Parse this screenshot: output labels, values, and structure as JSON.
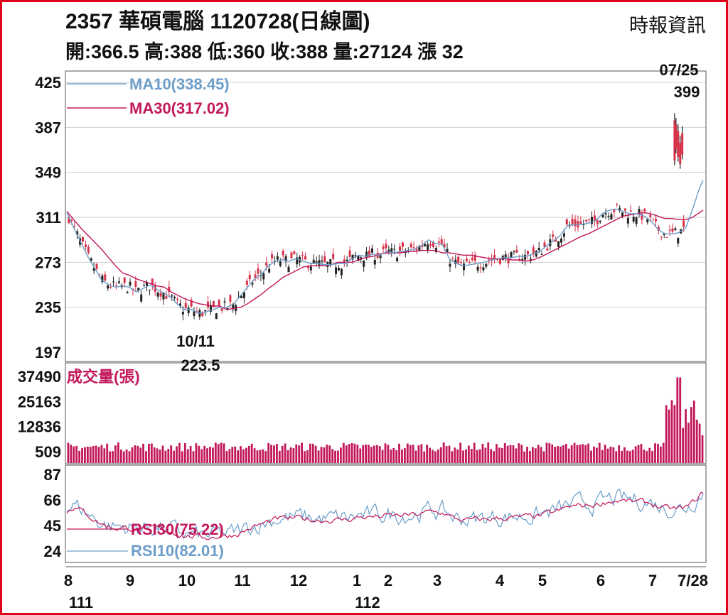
{
  "header": {
    "title": "2357 華碩電腦 1120728(日線圖)",
    "source": "時報資訊",
    "quote": "開:366.5 高:388 低:360 收:388 量:27124 漲 32"
  },
  "colors": {
    "frame": "#e0001b",
    "ma10": "#6c9ec9",
    "ma30": "#c2185b",
    "candle_up": "#d6324a",
    "candle_down": "#222222",
    "volume": "#c2185b",
    "rsi10": "#6c9ec9",
    "rsi30": "#c2185b",
    "grid": "#cfcfcf"
  },
  "chart_data": {
    "type": "line",
    "price_panel": {
      "yticks": [
        "425",
        "387",
        "349",
        "311",
        "273",
        "235",
        "197"
      ],
      "ylim": [
        197,
        425
      ],
      "legend": [
        "MA10(338.45)",
        "MA30(317.02)"
      ],
      "annotations": [
        {
          "label_date": "10/11",
          "label_value": "223.5"
        },
        {
          "label_date": "07/25",
          "label_value": "399"
        }
      ],
      "ma10": [
        [
          0,
          315
        ],
        [
          10,
          302
        ],
        [
          20,
          290
        ],
        [
          30,
          278
        ],
        [
          40,
          268
        ],
        [
          50,
          258
        ],
        [
          60,
          254
        ],
        [
          70,
          252
        ],
        [
          80,
          253
        ],
        [
          90,
          252
        ],
        [
          100,
          248
        ],
        [
          110,
          251
        ],
        [
          120,
          254
        ],
        [
          130,
          250
        ],
        [
          140,
          247
        ],
        [
          150,
          243
        ],
        [
          160,
          237
        ],
        [
          170,
          233
        ],
        [
          180,
          233
        ],
        [
          190,
          230
        ],
        [
          200,
          231
        ],
        [
          210,
          233
        ],
        [
          220,
          235
        ],
        [
          230,
          235
        ],
        [
          240,
          238
        ],
        [
          250,
          245
        ],
        [
          260,
          252
        ],
        [
          270,
          259
        ],
        [
          280,
          263
        ],
        [
          290,
          270
        ],
        [
          300,
          274
        ],
        [
          310,
          275
        ],
        [
          320,
          274
        ],
        [
          330,
          276
        ],
        [
          340,
          274
        ],
        [
          350,
          272
        ],
        [
          360,
          272
        ],
        [
          370,
          271
        ],
        [
          380,
          271
        ],
        [
          390,
          272
        ],
        [
          400,
          272
        ],
        [
          410,
          276
        ],
        [
          420,
          279
        ],
        [
          430,
          278
        ],
        [
          440,
          280
        ],
        [
          450,
          279
        ],
        [
          460,
          282
        ],
        [
          470,
          281
        ],
        [
          480,
          282
        ],
        [
          490,
          283
        ],
        [
          500,
          284
        ],
        [
          510,
          287
        ],
        [
          520,
          292
        ],
        [
          530,
          289
        ],
        [
          540,
          288
        ],
        [
          550,
          276
        ],
        [
          560,
          272
        ],
        [
          570,
          270
        ],
        [
          580,
          271
        ],
        [
          590,
          272
        ],
        [
          600,
          273
        ],
        [
          610,
          275
        ],
        [
          620,
          276
        ],
        [
          630,
          277
        ],
        [
          640,
          277
        ],
        [
          650,
          278
        ],
        [
          660,
          278
        ],
        [
          670,
          280
        ],
        [
          680,
          282
        ],
        [
          690,
          287
        ],
        [
          700,
          291
        ],
        [
          710,
          296
        ],
        [
          720,
          304
        ],
        [
          730,
          305
        ],
        [
          740,
          305
        ],
        [
          750,
          306
        ],
        [
          760,
          308
        ],
        [
          770,
          314
        ],
        [
          780,
          317
        ],
        [
          790,
          318
        ],
        [
          800,
          316
        ],
        [
          810,
          314
        ],
        [
          820,
          314
        ],
        [
          830,
          312
        ],
        [
          840,
          308
        ],
        [
          850,
          301
        ],
        [
          860,
          297
        ],
        [
          870,
          297
        ],
        [
          880,
          298
        ],
        [
          890,
          302
        ],
        [
          900,
          318
        ],
        [
          910,
          336
        ],
        [
          915,
          342
        ]
      ],
      "ma30": [
        [
          0,
          316
        ],
        [
          10,
          309
        ],
        [
          20,
          302
        ],
        [
          30,
          296
        ],
        [
          40,
          290
        ],
        [
          50,
          284
        ],
        [
          60,
          277
        ],
        [
          70,
          270
        ],
        [
          80,
          264
        ],
        [
          90,
          262
        ],
        [
          100,
          259
        ],
        [
          110,
          257
        ],
        [
          120,
          255
        ],
        [
          130,
          253
        ],
        [
          140,
          252
        ],
        [
          150,
          248
        ],
        [
          160,
          245
        ],
        [
          170,
          242
        ],
        [
          180,
          240
        ],
        [
          190,
          238
        ],
        [
          200,
          237
        ],
        [
          210,
          236
        ],
        [
          220,
          236
        ],
        [
          230,
          233
        ],
        [
          240,
          234
        ],
        [
          250,
          235
        ],
        [
          260,
          238
        ],
        [
          270,
          242
        ],
        [
          280,
          246
        ],
        [
          290,
          251
        ],
        [
          300,
          255
        ],
        [
          310,
          260
        ],
        [
          320,
          263
        ],
        [
          330,
          266
        ],
        [
          340,
          269
        ],
        [
          350,
          270
        ],
        [
          360,
          270
        ],
        [
          370,
          270
        ],
        [
          380,
          271
        ],
        [
          390,
          273
        ],
        [
          400,
          273
        ],
        [
          410,
          273
        ],
        [
          420,
          275
        ],
        [
          430,
          277
        ],
        [
          440,
          278
        ],
        [
          450,
          280
        ],
        [
          460,
          281
        ],
        [
          470,
          281
        ],
        [
          480,
          281
        ],
        [
          490,
          282
        ],
        [
          500,
          282
        ],
        [
          510,
          283
        ],
        [
          520,
          283
        ],
        [
          530,
          283
        ],
        [
          540,
          281
        ],
        [
          550,
          281
        ],
        [
          560,
          280
        ],
        [
          570,
          279
        ],
        [
          580,
          279
        ],
        [
          590,
          278
        ],
        [
          600,
          277
        ],
        [
          610,
          276
        ],
        [
          620,
          276
        ],
        [
          630,
          276
        ],
        [
          640,
          275
        ],
        [
          650,
          275
        ],
        [
          660,
          274
        ],
        [
          670,
          275
        ],
        [
          680,
          277
        ],
        [
          690,
          280
        ],
        [
          700,
          283
        ],
        [
          710,
          286
        ],
        [
          720,
          289
        ],
        [
          730,
          292
        ],
        [
          740,
          295
        ],
        [
          750,
          297
        ],
        [
          760,
          300
        ],
        [
          770,
          303
        ],
        [
          780,
          306
        ],
        [
          790,
          309
        ],
        [
          800,
          312
        ],
        [
          810,
          313
        ],
        [
          820,
          314
        ],
        [
          830,
          315
        ],
        [
          840,
          314
        ],
        [
          850,
          312
        ],
        [
          860,
          310
        ],
        [
          870,
          310
        ],
        [
          880,
          309
        ],
        [
          890,
          309
        ],
        [
          900,
          311
        ],
        [
          910,
          315
        ],
        [
          915,
          317
        ]
      ]
    },
    "volume_panel": {
      "legend": "成交量(張)",
      "yticks": [
        "37490",
        "25163",
        "12836",
        "509"
      ],
      "ylim": [
        509,
        37490
      ]
    },
    "rsi_panel": {
      "yticks": [
        "87",
        "66",
        "45",
        "24"
      ],
      "ylim": [
        24,
        87
      ],
      "legend": [
        "RSI30(75.22)",
        "RSI10(82.01)"
      ]
    },
    "x_axis": {
      "month_labels": [
        "8",
        "9",
        "10",
        "11",
        "12",
        "1",
        "2",
        "3",
        "4",
        "5",
        "6",
        "7",
        "7/28"
      ],
      "year_labels": [
        "111",
        "112"
      ]
    }
  }
}
